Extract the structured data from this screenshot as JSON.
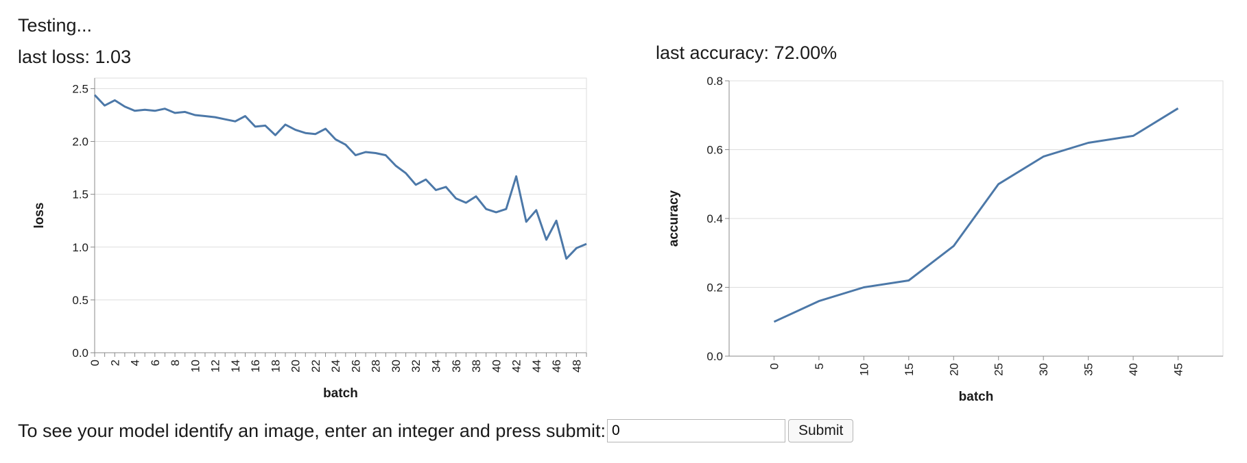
{
  "status": "Testing...",
  "loss_readout": "last loss: 1.03",
  "accuracy_readout": "last accuracy: 72.00%",
  "form": {
    "prompt": "To see your model identify an image, enter an integer and press submit:",
    "input_value": "0",
    "submit_label": "Submit"
  },
  "colors": {
    "line": "#4c78a8",
    "grid": "#dddddd",
    "axis": "#888888"
  },
  "chart_data": [
    {
      "type": "line",
      "xlabel": "batch",
      "ylabel": "loss",
      "ylim": [
        0,
        2.6
      ],
      "yticks": [
        0.0,
        0.5,
        1.0,
        1.5,
        2.0,
        2.5
      ],
      "ytick_labels": [
        "0.0",
        "0.5",
        "1.0",
        "1.5",
        "2.0",
        "2.5"
      ],
      "xlim": [
        0,
        49
      ],
      "xticks": [
        0,
        2,
        4,
        6,
        8,
        10,
        12,
        14,
        16,
        18,
        20,
        22,
        24,
        26,
        28,
        30,
        32,
        34,
        36,
        38,
        40,
        42,
        44,
        46,
        48
      ],
      "xtick_labels": [
        "0",
        "2",
        "4",
        "6",
        "8",
        "10",
        "12",
        "14",
        "16",
        "18",
        "20",
        "22",
        "24",
        "26",
        "28",
        "30",
        "32",
        "34",
        "36",
        "38",
        "40",
        "42",
        "44",
        "46",
        "48"
      ],
      "grid": true,
      "x": [
        0,
        1,
        2,
        3,
        4,
        5,
        6,
        7,
        8,
        9,
        10,
        11,
        12,
        13,
        14,
        15,
        16,
        17,
        18,
        19,
        20,
        21,
        22,
        23,
        24,
        25,
        26,
        27,
        28,
        29,
        30,
        31,
        32,
        33,
        34,
        35,
        36,
        37,
        38,
        39,
        40,
        41,
        42,
        43,
        44,
        45,
        46,
        47,
        48,
        49
      ],
      "y": [
        2.44,
        2.34,
        2.39,
        2.33,
        2.29,
        2.3,
        2.29,
        2.31,
        2.27,
        2.28,
        2.25,
        2.24,
        2.23,
        2.21,
        2.19,
        2.24,
        2.14,
        2.15,
        2.06,
        2.16,
        2.11,
        2.08,
        2.07,
        2.12,
        2.02,
        1.97,
        1.87,
        1.9,
        1.89,
        1.87,
        1.77,
        1.7,
        1.59,
        1.64,
        1.54,
        1.57,
        1.46,
        1.42,
        1.48,
        1.36,
        1.33,
        1.36,
        1.67,
        1.24,
        1.35,
        1.07,
        1.25,
        0.89,
        0.99,
        1.03
      ]
    },
    {
      "type": "line",
      "xlabel": "batch",
      "ylabel": "accuracy",
      "ylim": [
        0,
        0.8
      ],
      "yticks": [
        0.0,
        0.2,
        0.4,
        0.6,
        0.8
      ],
      "ytick_labels": [
        "0.0",
        "0.2",
        "0.4",
        "0.6",
        "0.8"
      ],
      "xlim": [
        -5,
        50
      ],
      "xticks": [
        0,
        5,
        10,
        15,
        20,
        25,
        30,
        35,
        40,
        45
      ],
      "xtick_labels": [
        "0",
        "5",
        "10",
        "15",
        "20",
        "25",
        "30",
        "35",
        "40",
        "45"
      ],
      "grid": true,
      "x": [
        0,
        5,
        10,
        15,
        20,
        25,
        30,
        35,
        40,
        45
      ],
      "y": [
        0.1,
        0.16,
        0.2,
        0.22,
        0.32,
        0.5,
        0.58,
        0.62,
        0.64,
        0.72
      ]
    }
  ]
}
